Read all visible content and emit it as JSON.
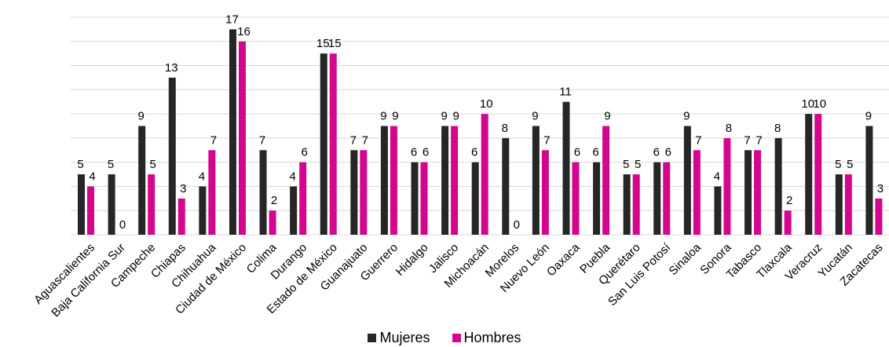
{
  "chart_data": {
    "type": "bar",
    "categories": [
      "Aguascalientes",
      "Baja California Sur",
      "Campeche",
      "Chiapas",
      "Chihuahua",
      "Ciudad de México",
      "Colima",
      "Durango",
      "Estado de México",
      "Guanajuato",
      "Guerrero",
      "Hidalgo",
      "Jalisco",
      "Michoacán",
      "Morelos",
      "Nuevo León",
      "Oaxaca",
      "Puebla",
      "Querétaro",
      "San Luis Potosí",
      "Sinaloa",
      "Sonora",
      "Tabasco",
      "Tlaxcala",
      "Veracruz",
      "Yucatán",
      "Zacatecas"
    ],
    "series": [
      {
        "name": "Mujeres",
        "color": "#262626",
        "values": [
          5,
          5,
          9,
          13,
          4,
          17,
          7,
          4,
          15,
          7,
          9,
          6,
          9,
          6,
          8,
          9,
          11,
          6,
          5,
          6,
          9,
          4,
          7,
          8,
          10,
          5,
          9
        ]
      },
      {
        "name": "Hombres",
        "color": "#d4068e",
        "values": [
          4,
          0,
          5,
          3,
          7,
          16,
          2,
          6,
          15,
          7,
          9,
          6,
          9,
          10,
          0,
          7,
          6,
          9,
          5,
          6,
          7,
          8,
          7,
          2,
          10,
          5,
          3
        ]
      }
    ],
    "ylim": [
      0,
      18
    ],
    "grid": true,
    "legend_position": "bottom"
  }
}
